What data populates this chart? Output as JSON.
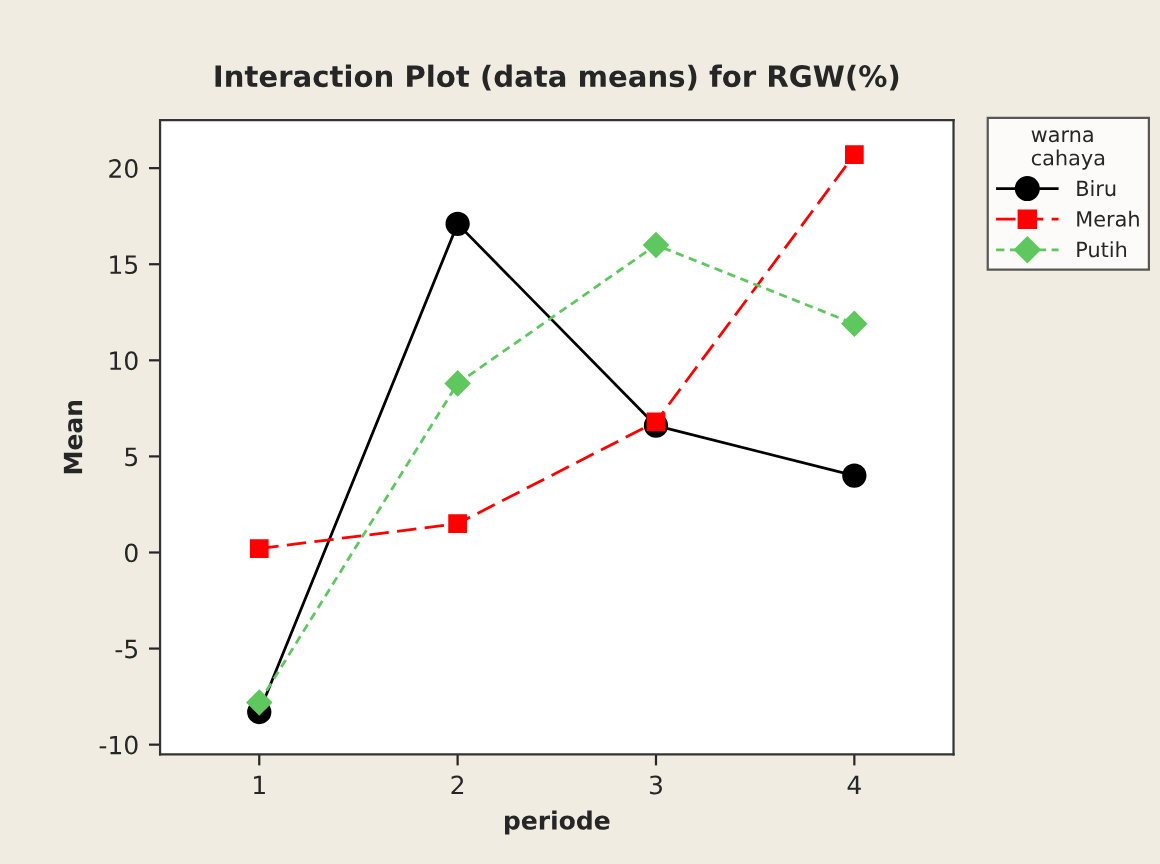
{
  "chart_data": {
    "type": "line",
    "title": "Interaction Plot (data means) for RGW(%)",
    "xlabel": "periode",
    "ylabel": "Mean",
    "legend_title": "warna\ncahaya",
    "categories": [
      "1",
      "2",
      "3",
      "4"
    ],
    "series": [
      {
        "name": "Biru",
        "color": "#000000",
        "values": [
          -8.3,
          17.1,
          6.6,
          4.0
        ],
        "marker": "circle",
        "line_style": "solid"
      },
      {
        "name": "Merah",
        "color": "#ff0000",
        "values": [
          0.2,
          1.5,
          6.8,
          20.7
        ],
        "marker": "square",
        "line_style": "dashed"
      },
      {
        "name": "Putih",
        "color": "#5ec85e",
        "values": [
          -7.8,
          8.8,
          16.0,
          11.9
        ],
        "marker": "diamond",
        "line_style": "dotted"
      }
    ],
    "ylim": [
      -10.5,
      22.5
    ],
    "yticks": [
      -10,
      -5,
      0,
      5,
      10,
      15,
      20
    ],
    "grid": false,
    "legend": "top right"
  }
}
